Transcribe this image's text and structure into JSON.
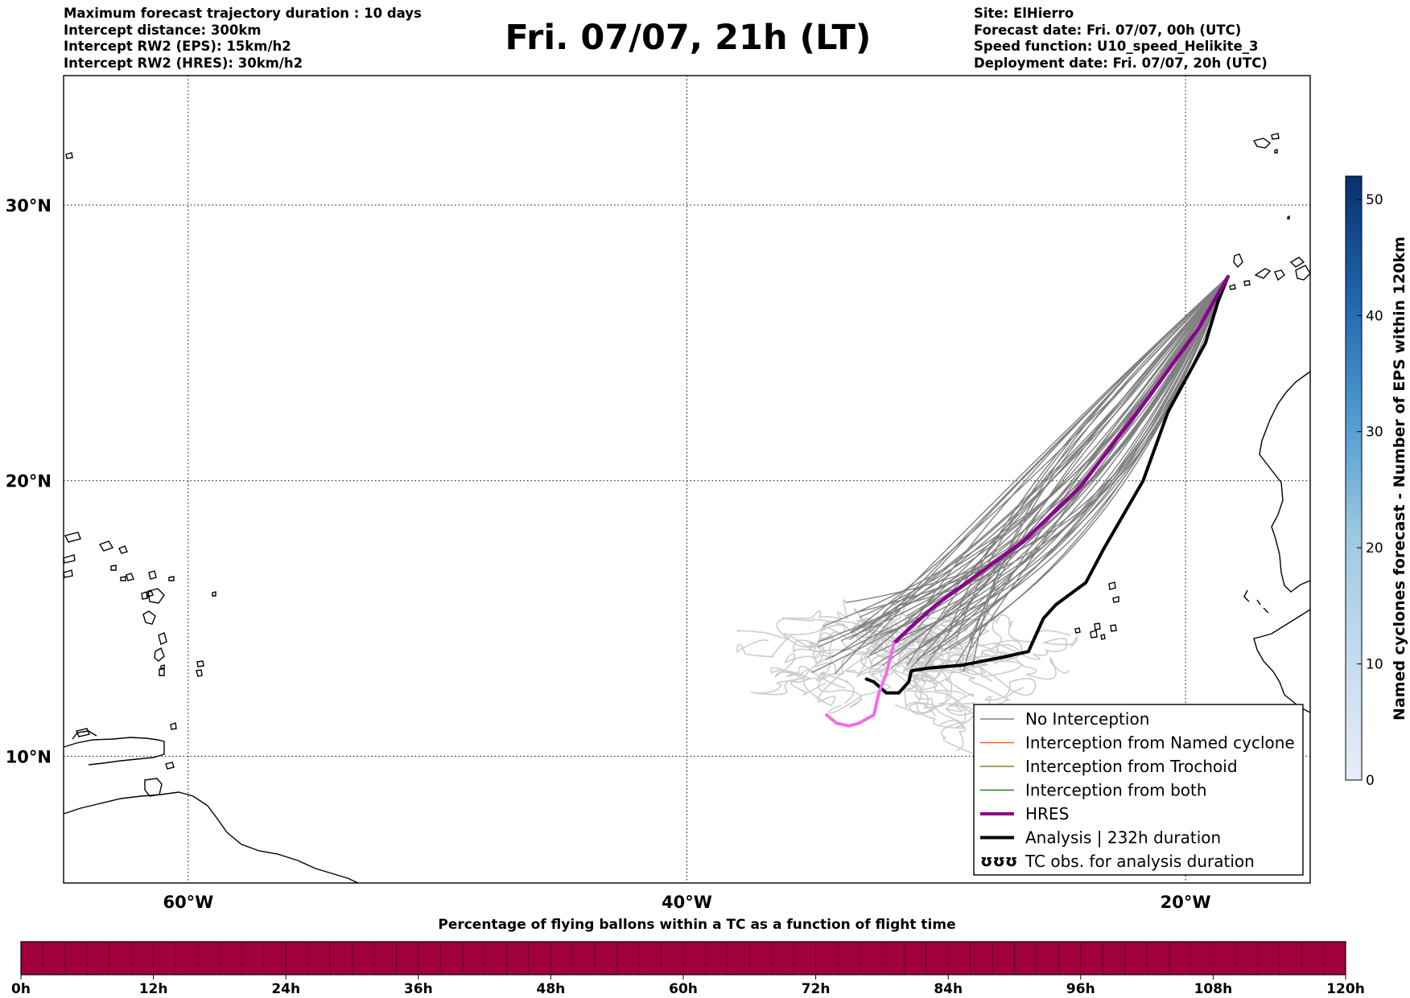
{
  "header": {
    "left_lines": [
      "Maximum forecast trajectory duration : 10 days",
      "Intercept distance: 300km",
      "Intercept RW2 (EPS):  15km/h2",
      "Intercept RW2 (HRES): 30km/h2"
    ],
    "title": "Fri. 07/07, 21h (LT)",
    "right_lines": [
      "Site: ElHierro",
      "Forecast date: Fri. 07/07, 00h (UTC)",
      "Speed function: U10_speed_Helikite_3",
      "Deployment date: Fri. 07/07, 20h (UTC)"
    ]
  },
  "map": {
    "extent": {
      "lon_min": -65,
      "lon_max": -15,
      "lat_min": 5.4,
      "lat_max": 34.7
    },
    "lat_gridlines": [
      {
        "value": 30,
        "label": "30°N"
      },
      {
        "value": 20,
        "label": "20°N"
      },
      {
        "value": 10,
        "label": "10°N"
      }
    ],
    "lon_gridlines": [
      {
        "value": -60,
        "label": "60°W"
      },
      {
        "value": -40,
        "label": "40°W"
      },
      {
        "value": -20,
        "label": "20°W"
      }
    ],
    "grid": "dotted",
    "colors": {
      "no_interception": "#808080",
      "faded_trajectories": "#cccccc",
      "named_cyclone": "#ff5a1e",
      "trochoid": "#808020",
      "both": "#208020",
      "hres": "#8b008b",
      "hres_tail": "#ee6eee",
      "analysis": "#000000",
      "coast": "#000000"
    },
    "tracks": {
      "hres": [
        [
          -18.3,
          27.4
        ],
        [
          -19.5,
          25.5
        ],
        [
          -21.5,
          23
        ],
        [
          -24.2,
          19.8
        ],
        [
          -26.5,
          17.8
        ],
        [
          -30,
          15.5
        ],
        [
          -31,
          14.7
        ],
        [
          -31.7,
          14.1
        ]
      ],
      "hres_tail": [
        [
          -31.7,
          14.1
        ],
        [
          -32,
          13
        ],
        [
          -32.3,
          12.3
        ],
        [
          -32.5,
          11.5
        ],
        [
          -33.1,
          11.2
        ],
        [
          -33.5,
          11.1
        ],
        [
          -34,
          11.2
        ],
        [
          -34.4,
          11.5
        ]
      ],
      "analysis": [
        [
          -18.3,
          27.4
        ],
        [
          -18.7,
          26.5
        ],
        [
          -19.2,
          25
        ],
        [
          -20.7,
          22.5
        ],
        [
          -21.7,
          20
        ],
        [
          -23.3,
          17.5
        ],
        [
          -24,
          16.3
        ],
        [
          -25.2,
          15.5
        ],
        [
          -25.7,
          15
        ],
        [
          -26.3,
          13.8
        ],
        [
          -27.3,
          13.6
        ],
        [
          -29,
          13.3
        ],
        [
          -30.3,
          13.2
        ],
        [
          -31,
          13.1
        ],
        [
          -31.1,
          12.7
        ],
        [
          -31.5,
          12.3
        ],
        [
          -32,
          12.3
        ],
        [
          -32.5,
          12.7
        ],
        [
          -32.8,
          12.8
        ]
      ],
      "eps_summary": {
        "members": 50,
        "origin": [
          -18.3,
          27.4
        ],
        "spread_lon": [
          -38,
          -23
        ],
        "spread_lat": [
          9.7,
          15
        ]
      }
    },
    "islands_visible": [
      "Madeira",
      "Canary Islands",
      "Cape Verde",
      "Lesser Antilles"
    ]
  },
  "legend": {
    "position": "lower-right",
    "items": [
      {
        "label": "No Interception",
        "style": "thin",
        "color": "#808080"
      },
      {
        "label": "Interception from Named cyclone",
        "style": "thin",
        "color": "#ff5a1e"
      },
      {
        "label": "Interception from Trochoid",
        "style": "thin",
        "color": "#808020"
      },
      {
        "label": "Interception from both",
        "style": "thin",
        "color": "#208020"
      },
      {
        "label": "HRES",
        "style": "thick",
        "color": "#8b008b"
      },
      {
        "label": "Analysis | 232h duration",
        "style": "thick",
        "color": "#000000"
      },
      {
        "label": "TC obs. for analysis duration",
        "style": "symbol",
        "symbol": "ʊʊʊ",
        "color": "#000000"
      }
    ]
  },
  "colorbar": {
    "label": "Named cyclones forecast - Number of EPS within 120km",
    "min": 0,
    "max": 52,
    "ticks": [
      0,
      10,
      20,
      30,
      40,
      50
    ],
    "color_low": "#e6eef8",
    "color_high": "#08306b"
  },
  "flight_bar": {
    "title": "Percentage of flying ballons within a TC as a function of flight time",
    "ticks": [
      "0h",
      "12h",
      "24h",
      "36h",
      "48h",
      "60h",
      "72h",
      "84h",
      "96h",
      "108h",
      "120h"
    ],
    "fill_color": "#a0003c",
    "segments": 60
  }
}
